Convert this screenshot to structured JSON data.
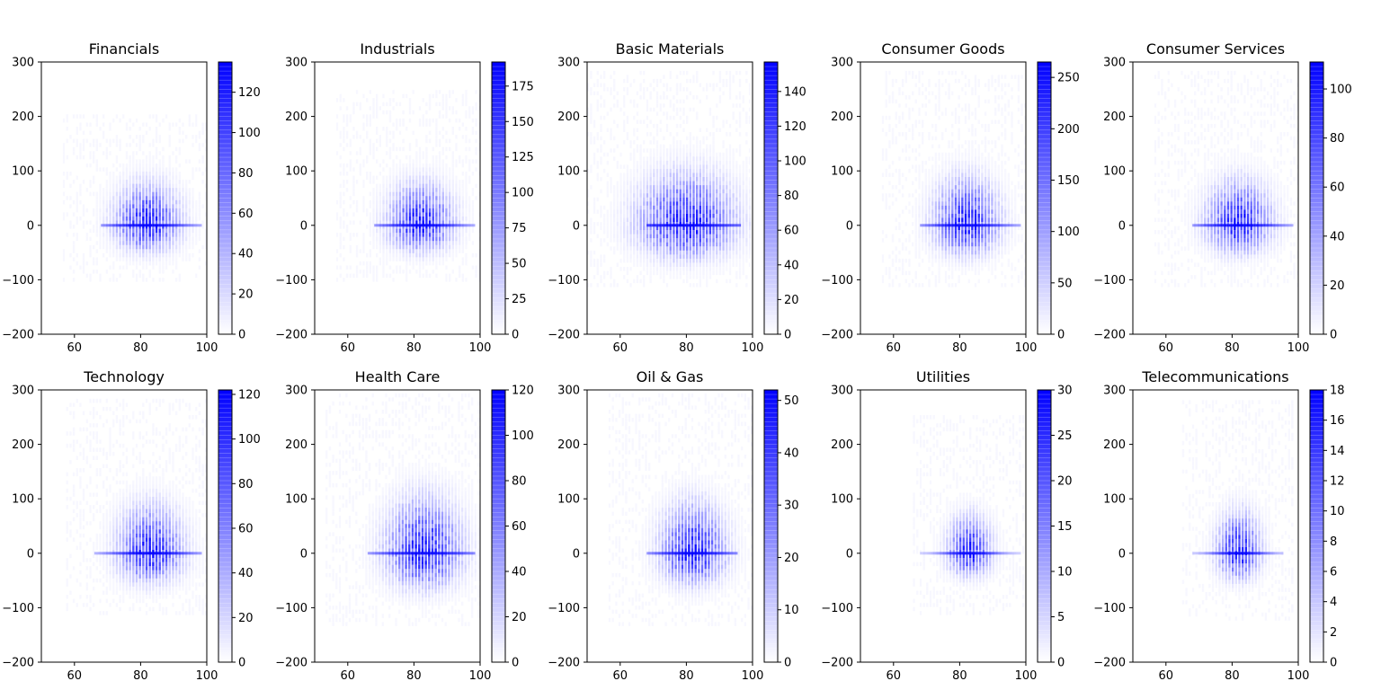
{
  "figure": {
    "colormap": [
      "#ffffff",
      "#0000ff"
    ],
    "grid": false
  },
  "chart_data": [
    {
      "type": "heatmap",
      "title": "Financials",
      "xlim": [
        50,
        100
      ],
      "ylim": [
        -200,
        300
      ],
      "xticks": [
        "60",
        "80",
        "100"
      ],
      "yticks": [
        "−200",
        "−100",
        "0",
        "100",
        "200",
        "300"
      ],
      "colorbar": {
        "max": 135,
        "ticks": [
          "0",
          "20",
          "40",
          "60",
          "80",
          "100",
          "120"
        ]
      },
      "density": {
        "center_x": 82,
        "sigma_x": 6,
        "sigma_y": 28,
        "y_extent": [
          -100,
          200
        ],
        "band_start_x": 68,
        "band_end_x": 98,
        "peak": 120
      }
    },
    {
      "type": "heatmap",
      "title": "Industrials",
      "xlim": [
        50,
        100
      ],
      "ylim": [
        -200,
        300
      ],
      "xticks": [
        "60",
        "80",
        "100"
      ],
      "yticks": [
        "−200",
        "−100",
        "0",
        "100",
        "200",
        "300"
      ],
      "colorbar": {
        "max": 192,
        "ticks": [
          "0",
          "25",
          "50",
          "75",
          "100",
          "125",
          "150",
          "175"
        ]
      },
      "density": {
        "center_x": 82,
        "sigma_x": 6,
        "sigma_y": 28,
        "y_extent": [
          -100,
          250
        ],
        "band_start_x": 68,
        "band_end_x": 98,
        "peak": 175
      }
    },
    {
      "type": "heatmap",
      "title": "Basic Materials",
      "xlim": [
        50,
        100
      ],
      "ylim": [
        -200,
        300
      ],
      "xticks": [
        "60",
        "80",
        "100"
      ],
      "yticks": [
        "−200",
        "−100",
        "0",
        "100",
        "200",
        "300"
      ],
      "colorbar": {
        "max": 157,
        "ticks": [
          "0",
          "20",
          "40",
          "60",
          "80",
          "100",
          "120",
          "140"
        ]
      },
      "density": {
        "center_x": 80,
        "sigma_x": 9,
        "sigma_y": 35,
        "y_extent": [
          -110,
          280
        ],
        "band_start_x": 68,
        "band_end_x": 96,
        "peak": 150
      }
    },
    {
      "type": "heatmap",
      "title": "Consumer Goods",
      "xlim": [
        50,
        100
      ],
      "ylim": [
        -200,
        300
      ],
      "xticks": [
        "60",
        "80",
        "100"
      ],
      "yticks": [
        "−200",
        "−100",
        "0",
        "100",
        "200",
        "300"
      ],
      "colorbar": {
        "max": 265,
        "ticks": [
          "0",
          "50",
          "100",
          "150",
          "200",
          "250"
        ]
      },
      "density": {
        "center_x": 82,
        "sigma_x": 6,
        "sigma_y": 32,
        "y_extent": [
          -110,
          280
        ],
        "band_start_x": 68,
        "band_end_x": 98,
        "peak": 240
      }
    },
    {
      "type": "heatmap",
      "title": "Consumer Services",
      "xlim": [
        50,
        100
      ],
      "ylim": [
        -200,
        300
      ],
      "xticks": [
        "60",
        "80",
        "100"
      ],
      "yticks": [
        "−200",
        "−100",
        "0",
        "100",
        "200",
        "300"
      ],
      "colorbar": {
        "max": 111,
        "ticks": [
          "0",
          "20",
          "40",
          "60",
          "80",
          "100"
        ]
      },
      "density": {
        "center_x": 82,
        "sigma_x": 6,
        "sigma_y": 30,
        "y_extent": [
          -110,
          280
        ],
        "band_start_x": 68,
        "band_end_x": 98,
        "peak": 105
      }
    },
    {
      "type": "heatmap",
      "title": "Technology",
      "xlim": [
        50,
        100
      ],
      "ylim": [
        -200,
        300
      ],
      "xticks": [
        "60",
        "80",
        "100"
      ],
      "yticks": [
        "−200",
        "−100",
        "0",
        "100",
        "200",
        "300"
      ],
      "colorbar": {
        "max": 122,
        "ticks": [
          "0",
          "20",
          "40",
          "60",
          "80",
          "100",
          "120"
        ]
      },
      "density": {
        "center_x": 83,
        "sigma_x": 6,
        "sigma_y": 32,
        "y_extent": [
          -110,
          280
        ],
        "band_start_x": 66,
        "band_end_x": 98,
        "peak": 115
      }
    },
    {
      "type": "heatmap",
      "title": "Health Care",
      "xlim": [
        50,
        100
      ],
      "ylim": [
        -200,
        300
      ],
      "xticks": [
        "60",
        "80",
        "100"
      ],
      "yticks": [
        "−200",
        "−100",
        "0",
        "100",
        "200",
        "300"
      ],
      "colorbar": {
        "max": 120,
        "ticks": [
          "0",
          "20",
          "40",
          "60",
          "80",
          "100",
          "120"
        ]
      },
      "density": {
        "center_x": 83,
        "sigma_x": 7,
        "sigma_y": 38,
        "y_extent": [
          -130,
          290
        ],
        "band_start_x": 66,
        "band_end_x": 98,
        "peak": 115
      }
    },
    {
      "type": "heatmap",
      "title": "Oil & Gas",
      "xlim": [
        50,
        100
      ],
      "ylim": [
        -200,
        300
      ],
      "xticks": [
        "60",
        "80",
        "100"
      ],
      "yticks": [
        "−200",
        "−100",
        "0",
        "100",
        "200",
        "300"
      ],
      "colorbar": {
        "max": 52,
        "ticks": [
          "0",
          "10",
          "20",
          "30",
          "40",
          "50"
        ]
      },
      "density": {
        "center_x": 82,
        "sigma_x": 6,
        "sigma_y": 34,
        "y_extent": [
          -130,
          290
        ],
        "band_start_x": 68,
        "band_end_x": 95,
        "peak": 45
      }
    },
    {
      "type": "heatmap",
      "title": "Utilities",
      "xlim": [
        50,
        100
      ],
      "ylim": [
        -200,
        300
      ],
      "xticks": [
        "60",
        "80",
        "100"
      ],
      "yticks": [
        "−200",
        "−100",
        "0",
        "100",
        "200",
        "300"
      ],
      "colorbar": {
        "max": 30,
        "ticks": [
          "0",
          "5",
          "10",
          "15",
          "20",
          "25",
          "30"
        ]
      },
      "density": {
        "center_x": 83,
        "sigma_x": 4,
        "sigma_y": 25,
        "y_extent": [
          -110,
          250
        ],
        "band_start_x": 68,
        "band_end_x": 98,
        "peak": 28
      }
    },
    {
      "type": "heatmap",
      "title": "Telecommunications",
      "xlim": [
        50,
        100
      ],
      "ylim": [
        -200,
        300
      ],
      "xticks": [
        "60",
        "80",
        "100"
      ],
      "yticks": [
        "−200",
        "−100",
        "0",
        "100",
        "200",
        "300"
      ],
      "colorbar": {
        "max": 18,
        "ticks": [
          "0",
          "2",
          "4",
          "6",
          "8",
          "10",
          "12",
          "14",
          "16",
          "18"
        ]
      },
      "density": {
        "center_x": 82,
        "sigma_x": 4,
        "sigma_y": 28,
        "y_extent": [
          -120,
          280
        ],
        "band_start_x": 68,
        "band_end_x": 95,
        "peak": 17
      }
    }
  ]
}
